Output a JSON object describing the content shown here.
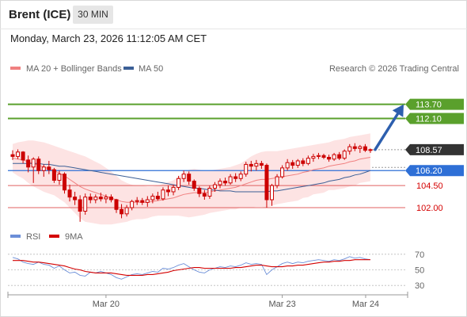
{
  "header": {
    "instrument": "Brent (ICE)",
    "timeframe": "30 MIN",
    "datetime": "Monday, March 23, 2026 11:12:05 AM CET"
  },
  "colors": {
    "candle": "#cc0000",
    "bollinger_fill": "#fde3e3",
    "ma20": "#f08080",
    "ma50": "#3b5f96",
    "target": "#5aa02c",
    "support": "#e06060",
    "pivot": "#2e6fd6",
    "current": "#333333",
    "arrow": "#2d5fae",
    "rsi": "#6c8fd8",
    "rsi_ma": "#d40000"
  },
  "chart_data": [
    {
      "type": "candlestick",
      "legend": [
        {
          "label": "MA 20 + Bollinger Bands",
          "color": "#f08080"
        },
        {
          "label": "MA 50",
          "color": "#3b5f96"
        }
      ],
      "legend_placement": "top-left",
      "watermark": "Research © 2026 Trading Central",
      "x_ticks": [
        "Mar 20",
        "Mar 23",
        "Mar 24"
      ],
      "ylim": [
        99.4,
        116.9
      ],
      "levels": [
        {
          "value": 113.7,
          "label": "113.70",
          "kind": "target",
          "style": "solid"
        },
        {
          "value": 112.1,
          "label": "112.10",
          "kind": "target",
          "style": "solid"
        },
        {
          "value": 108.57,
          "label": "108.57",
          "kind": "current",
          "style": "dotted"
        },
        {
          "value": 106.2,
          "label": "106.20",
          "kind": "pivot",
          "style": "solid"
        },
        {
          "value": 104.5,
          "label": "104.50",
          "kind": "support",
          "style": "solid"
        },
        {
          "value": 102.0,
          "label": "102.00",
          "kind": "support",
          "style": "solid"
        }
      ],
      "arrow": {
        "from": 108.57,
        "to": 113.7,
        "direction": "up"
      },
      "candles": [
        [
          108.0,
          108.5,
          107.4,
          107.8
        ],
        [
          107.8,
          108.6,
          107.5,
          108.3
        ],
        [
          108.3,
          108.4,
          107.0,
          107.4
        ],
        [
          107.4,
          107.9,
          106.0,
          106.6
        ],
        [
          106.6,
          107.7,
          104.8,
          107.5
        ],
        [
          107.5,
          107.8,
          105.8,
          106.2
        ],
        [
          106.2,
          106.9,
          105.5,
          106.6
        ],
        [
          106.6,
          107.3,
          105.8,
          106.3
        ],
        [
          106.3,
          106.5,
          104.8,
          105.1
        ],
        [
          105.1,
          106.2,
          104.6,
          105.8
        ],
        [
          105.8,
          106.0,
          103.6,
          104.0
        ],
        [
          104.0,
          104.6,
          102.7,
          103.2
        ],
        [
          103.2,
          103.8,
          102.3,
          102.9
        ],
        [
          102.9,
          103.4,
          100.4,
          101.6
        ],
        [
          101.6,
          103.6,
          101.2,
          103.2
        ],
        [
          103.2,
          103.6,
          102.5,
          102.9
        ],
        [
          102.9,
          103.5,
          102.5,
          103.2
        ],
        [
          103.2,
          103.7,
          102.7,
          103.0
        ],
        [
          103.0,
          103.5,
          102.5,
          103.2
        ],
        [
          103.2,
          103.5,
          102.6,
          102.9
        ],
        [
          102.9,
          103.0,
          101.4,
          101.8
        ],
        [
          101.8,
          102.4,
          100.8,
          101.3
        ],
        [
          101.3,
          102.3,
          101.0,
          102.0
        ],
        [
          102.0,
          102.9,
          101.7,
          102.7
        ],
        [
          102.7,
          103.2,
          102.3,
          102.8
        ],
        [
          102.8,
          103.1,
          102.3,
          102.6
        ],
        [
          102.6,
          103.3,
          102.1,
          102.9
        ],
        [
          102.9,
          103.6,
          102.5,
          103.3
        ],
        [
          103.3,
          103.8,
          102.8,
          103.0
        ],
        [
          103.0,
          104.3,
          102.8,
          104.0
        ],
        [
          104.0,
          104.5,
          103.3,
          103.8
        ],
        [
          103.8,
          104.6,
          103.4,
          104.3
        ],
        [
          104.3,
          105.6,
          104.0,
          105.3
        ],
        [
          105.3,
          106.2,
          104.9,
          105.8
        ],
        [
          105.8,
          106.1,
          104.6,
          105.0
        ],
        [
          105.0,
          105.2,
          103.9,
          104.2
        ],
        [
          104.2,
          104.4,
          103.2,
          103.6
        ],
        [
          103.6,
          104.0,
          102.9,
          103.3
        ],
        [
          103.3,
          104.5,
          103.0,
          104.2
        ],
        [
          104.2,
          104.9,
          103.8,
          104.6
        ],
        [
          104.6,
          105.3,
          104.2,
          105.0
        ],
        [
          105.0,
          105.4,
          104.5,
          104.8
        ],
        [
          104.8,
          105.8,
          104.6,
          105.5
        ],
        [
          105.5,
          105.9,
          104.9,
          105.3
        ],
        [
          105.3,
          106.1,
          105.0,
          105.8
        ],
        [
          105.8,
          107.2,
          105.5,
          106.9
        ],
        [
          106.9,
          107.3,
          106.1,
          106.7
        ],
        [
          106.7,
          107.4,
          106.2,
          107.0
        ],
        [
          107.0,
          107.3,
          106.4,
          106.8
        ],
        [
          106.8,
          107.0,
          102.0,
          102.9
        ],
        [
          102.9,
          104.7,
          102.2,
          104.5
        ],
        [
          104.5,
          105.8,
          104.2,
          105.5
        ],
        [
          105.5,
          106.8,
          105.3,
          106.5
        ],
        [
          106.5,
          107.5,
          106.2,
          107.1
        ],
        [
          107.1,
          107.4,
          106.4,
          106.8
        ],
        [
          106.8,
          107.5,
          106.5,
          107.3
        ],
        [
          107.3,
          107.6,
          106.7,
          107.0
        ],
        [
          107.0,
          107.9,
          106.8,
          107.6
        ],
        [
          107.6,
          108.1,
          107.2,
          107.8
        ],
        [
          107.8,
          108.2,
          107.5,
          107.9
        ],
        [
          107.9,
          108.1,
          107.5,
          107.7
        ],
        [
          107.7,
          108.0,
          107.2,
          107.5
        ],
        [
          107.5,
          108.2,
          107.3,
          108.0
        ],
        [
          108.0,
          108.3,
          107.4,
          107.6
        ],
        [
          107.6,
          108.6,
          107.4,
          108.4
        ],
        [
          108.4,
          109.2,
          108.0,
          108.9
        ],
        [
          108.9,
          109.3,
          108.4,
          108.7
        ],
        [
          108.7,
          109.1,
          108.2,
          108.9
        ],
        [
          108.9,
          109.2,
          108.3,
          108.5
        ],
        [
          108.5,
          108.7,
          108.2,
          108.57
        ]
      ],
      "ma20": [
        107.6,
        107.5,
        107.4,
        107.2,
        107.0,
        106.8,
        106.6,
        106.4,
        106.2,
        105.9,
        105.6,
        105.2,
        104.8,
        104.4,
        104.1,
        103.9,
        103.7,
        103.5,
        103.3,
        103.1,
        102.9,
        102.7,
        102.6,
        102.6,
        102.6,
        102.6,
        102.6,
        102.7,
        102.8,
        102.9,
        103.0,
        103.1,
        103.3,
        103.5,
        103.6,
        103.7,
        103.7,
        103.7,
        103.8,
        103.9,
        104.0,
        104.1,
        104.2,
        104.3,
        104.5,
        104.7,
        104.9,
        105.1,
        105.2,
        105.2,
        105.3,
        105.4,
        105.5,
        105.6,
        105.7,
        105.8,
        106.0,
        106.1,
        106.3,
        106.4,
        106.5,
        106.7,
        106.8,
        106.9,
        107.0,
        107.2,
        107.3,
        107.5,
        107.6,
        107.7
      ],
      "bb_upper": [
        109.2,
        109.4,
        109.5,
        109.6,
        109.6,
        109.5,
        109.4,
        109.2,
        109.0,
        108.8,
        108.6,
        108.4,
        108.2,
        108.0,
        107.8,
        107.5,
        107.2,
        106.9,
        106.5,
        106.1,
        105.6,
        105.1,
        104.8,
        104.6,
        104.5,
        104.5,
        104.4,
        104.4,
        104.5,
        104.7,
        104.9,
        105.1,
        105.5,
        106.0,
        106.3,
        106.4,
        106.3,
        106.2,
        106.2,
        106.3,
        106.4,
        106.5,
        106.6,
        106.8,
        107.0,
        107.4,
        107.8,
        108.1,
        108.3,
        108.4,
        108.4,
        108.4,
        108.5,
        108.6,
        108.7,
        108.8,
        108.9,
        109.0,
        109.1,
        109.2,
        109.3,
        109.4,
        109.6,
        109.7,
        109.8,
        110.0,
        110.1,
        110.2,
        110.3,
        110.4
      ],
      "bb_lower": [
        106.0,
        105.6,
        105.3,
        104.8,
        104.4,
        104.1,
        103.8,
        103.6,
        103.4,
        103.0,
        102.6,
        102.0,
        101.4,
        100.8,
        100.4,
        100.3,
        100.2,
        100.1,
        100.1,
        100.1,
        100.2,
        100.3,
        100.4,
        100.6,
        100.7,
        100.7,
        100.8,
        101.0,
        101.1,
        101.1,
        101.1,
        101.1,
        101.1,
        101.0,
        100.9,
        101.0,
        101.1,
        101.2,
        101.4,
        101.5,
        101.6,
        101.7,
        101.8,
        101.8,
        102.0,
        102.0,
        102.0,
        102.1,
        102.1,
        102.0,
        102.2,
        102.4,
        102.5,
        102.6,
        102.7,
        102.8,
        103.1,
        103.2,
        103.5,
        103.6,
        103.7,
        104.0,
        104.0,
        104.1,
        104.2,
        104.4,
        104.5,
        104.8,
        104.9,
        105.0
      ],
      "ma50": [
        107.0,
        107.0,
        107.0,
        107.0,
        107.0,
        107.0,
        106.9,
        106.9,
        106.8,
        106.7,
        106.7,
        106.6,
        106.5,
        106.4,
        106.3,
        106.2,
        106.1,
        106.0,
        105.9,
        105.8,
        105.7,
        105.6,
        105.5,
        105.4,
        105.3,
        105.2,
        105.1,
        105.0,
        104.9,
        104.8,
        104.7,
        104.6,
        104.5,
        104.4,
        104.3,
        104.2,
        104.2,
        104.1,
        104.0,
        104.0,
        103.9,
        103.9,
        103.9,
        103.8,
        103.8,
        103.8,
        103.8,
        103.8,
        103.8,
        103.8,
        103.9,
        103.9,
        104.0,
        104.1,
        104.2,
        104.3,
        104.4,
        104.5,
        104.6,
        104.7,
        104.8,
        105.0,
        105.1,
        105.2,
        105.4,
        105.5,
        105.7,
        105.8,
        106.0,
        106.2
      ]
    },
    {
      "type": "line",
      "legend": [
        {
          "label": "RSI",
          "color": "#6c8fd8"
        },
        {
          "label": "9MA",
          "color": "#d40000"
        }
      ],
      "legend_placement": "top-left",
      "ylim": [
        20,
        80
      ],
      "y_ticks": [
        70,
        50,
        30
      ],
      "rsi": [
        66,
        64,
        60,
        58,
        57,
        60,
        57,
        56,
        52,
        55,
        50,
        46,
        47,
        43,
        42,
        47,
        46,
        48,
        46,
        44,
        40,
        38,
        41,
        44,
        45,
        44,
        46,
        48,
        47,
        52,
        51,
        53,
        56,
        58,
        54,
        50,
        47,
        46,
        50,
        52,
        54,
        53,
        55,
        54,
        56,
        59,
        57,
        58,
        57,
        44,
        50,
        54,
        58,
        60,
        58,
        60,
        59,
        61,
        62,
        63,
        62,
        61,
        63,
        62,
        64,
        67,
        65,
        66,
        64,
        63
      ],
      "rsi_ma": [
        62,
        62,
        62,
        61,
        60,
        60,
        59,
        58,
        57,
        56,
        55,
        53,
        51,
        50,
        48,
        47,
        46,
        46,
        46,
        46,
        45,
        44,
        43,
        43,
        43,
        43,
        44,
        44,
        45,
        46,
        47,
        49,
        50,
        51,
        52,
        53,
        53,
        52,
        52,
        52,
        52,
        52,
        52,
        53,
        53,
        54,
        55,
        56,
        56,
        55,
        54,
        54,
        54,
        55,
        55,
        56,
        56,
        57,
        58,
        59,
        60,
        60,
        61,
        61,
        62,
        62,
        63,
        63,
        63,
        63
      ]
    }
  ]
}
